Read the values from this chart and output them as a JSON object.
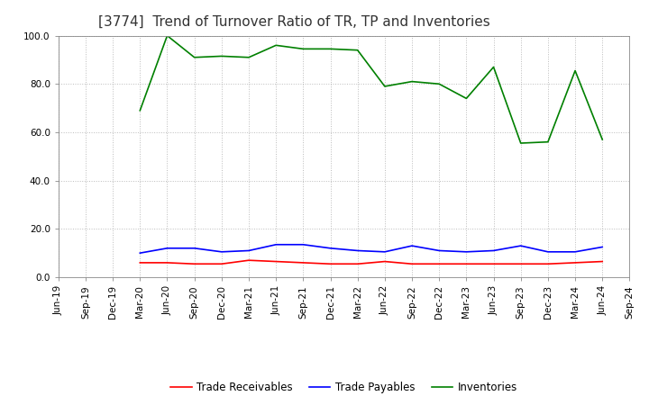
{
  "title": "[3774]  Trend of Turnover Ratio of TR, TP and Inventories",
  "x_labels": [
    "Jun-19",
    "Sep-19",
    "Dec-19",
    "Mar-20",
    "Jun-20",
    "Sep-20",
    "Dec-20",
    "Mar-21",
    "Jun-21",
    "Sep-21",
    "Dec-21",
    "Mar-22",
    "Jun-22",
    "Sep-22",
    "Dec-22",
    "Mar-23",
    "Jun-23",
    "Sep-23",
    "Dec-23",
    "Mar-24",
    "Jun-24",
    "Sep-24"
  ],
  "trade_receivables": [
    null,
    null,
    null,
    6.0,
    6.0,
    5.5,
    5.5,
    7.0,
    6.5,
    6.0,
    5.5,
    5.5,
    6.5,
    5.5,
    5.5,
    5.5,
    5.5,
    5.5,
    5.5,
    6.0,
    6.5,
    null
  ],
  "trade_payables": [
    null,
    null,
    null,
    10.0,
    12.0,
    12.0,
    10.5,
    11.0,
    13.5,
    13.5,
    12.0,
    11.0,
    10.5,
    13.0,
    11.0,
    10.5,
    11.0,
    13.0,
    10.5,
    10.5,
    12.5,
    null
  ],
  "inventories": [
    null,
    null,
    null,
    69.0,
    100.0,
    91.0,
    91.5,
    91.0,
    96.0,
    94.5,
    94.5,
    94.0,
    79.0,
    81.0,
    80.0,
    74.0,
    87.0,
    55.5,
    56.0,
    85.5,
    57.0,
    null
  ],
  "ylim": [
    0,
    100
  ],
  "yticks": [
    0.0,
    20.0,
    40.0,
    60.0,
    80.0,
    100.0
  ],
  "line_colors": {
    "trade_receivables": "#ff0000",
    "trade_payables": "#0000ff",
    "inventories": "#008000"
  },
  "legend_labels": [
    "Trade Receivables",
    "Trade Payables",
    "Inventories"
  ],
  "background_color": "#ffffff",
  "grid_color": "#bbbbbb",
  "title_fontsize": 11,
  "tick_fontsize": 7.5,
  "legend_fontsize": 8.5,
  "line_width": 1.2
}
